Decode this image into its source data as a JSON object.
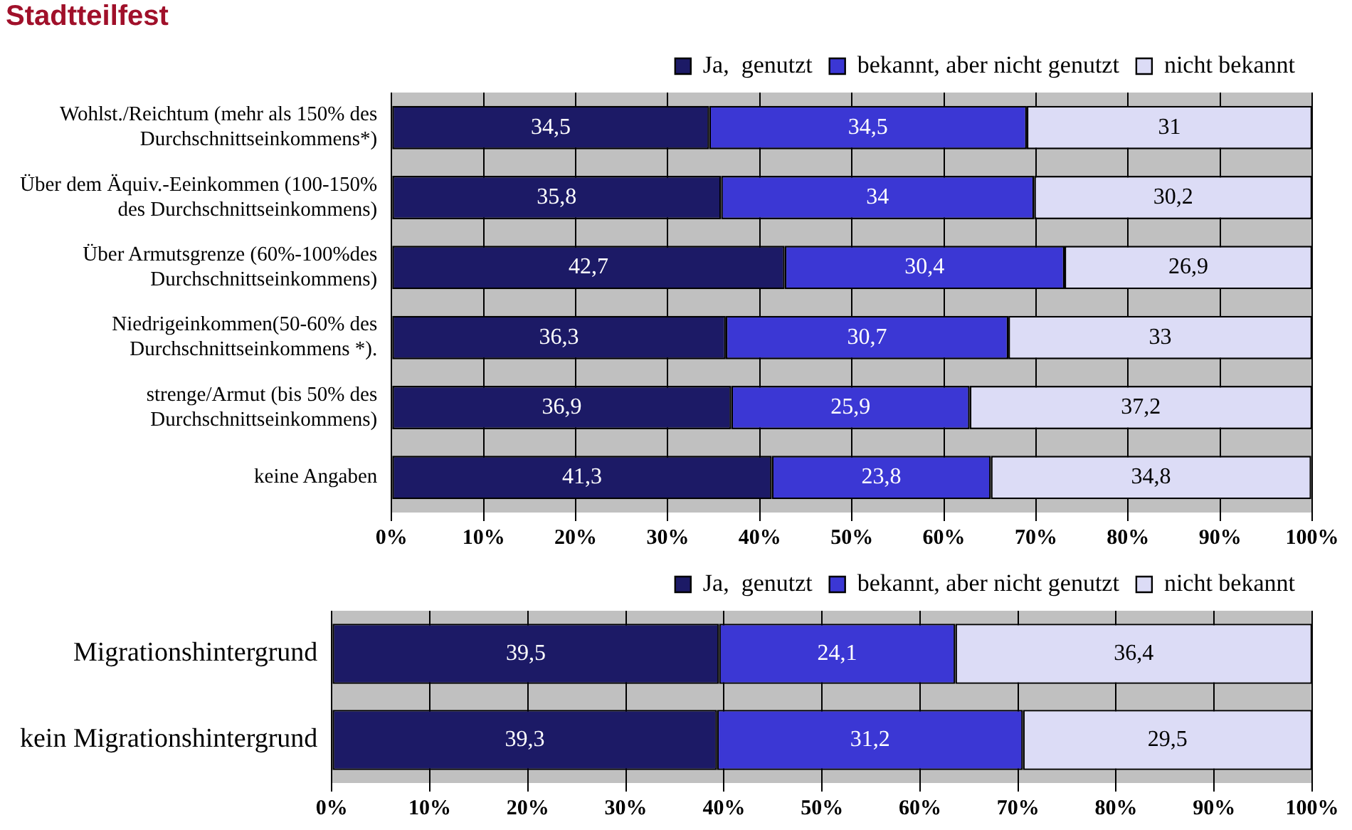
{
  "chart_data": [
    {
      "type": "bar",
      "title": "Stadtteilfest",
      "orientation": "horizontal",
      "stacked": true,
      "grid": "x",
      "legend": "top",
      "categories": [
        "Wohlst./Reichtum (mehr als 150% des Durchschnittseinkommens*)",
        "Über dem Äquiv.-Eeinkommen (100-150% des Durchschnittseinkommens)",
        "Über Armutsgrenze (60%-100%des Durchschnittseinkommens)",
        "Niedrigeinkommen(50-60% des Durchschnittseinkommens *).",
        "strenge/Armut (bis 50% des Durchschnittseinkommens)",
        "keine Angaben"
      ],
      "series": [
        {
          "name": "Ja,  genutzt",
          "color": "#1c1a66",
          "values": [
            34.5,
            35.8,
            42.7,
            36.3,
            36.9,
            41.3
          ],
          "value_labels": [
            "34,5",
            "35,8",
            "42,7",
            "36,3",
            "36,9",
            "41,3"
          ]
        },
        {
          "name": "bekannt, aber nicht genutzt",
          "color": "#3b37d4",
          "values": [
            34.5,
            34,
            30.4,
            30.7,
            25.9,
            23.8
          ],
          "value_labels": [
            "34,5",
            "34",
            "30,4",
            "30,7",
            "25,9",
            "23,8"
          ]
        },
        {
          "name": "nicht bekannt",
          "color": "#dcdcf6",
          "values": [
            31,
            30.2,
            26.9,
            33,
            37.2,
            34.8
          ],
          "value_labels": [
            "31",
            "30,2",
            "26,9",
            "33",
            "37,2",
            "34,8"
          ]
        }
      ],
      "xlim": [
        0,
        100
      ],
      "xticks": [
        {
          "value": 0,
          "label": "0%"
        },
        {
          "value": 10,
          "label": "10%"
        },
        {
          "value": 20,
          "label": "20%"
        },
        {
          "value": 30,
          "label": "30%"
        },
        {
          "value": 40,
          "label": "40%"
        },
        {
          "value": 50,
          "label": "50%"
        },
        {
          "value": 60,
          "label": "60%"
        },
        {
          "value": 70,
          "label": "70%"
        },
        {
          "value": 80,
          "label": "80%"
        },
        {
          "value": 90,
          "label": "90%"
        },
        {
          "value": 100,
          "label": "100%"
        }
      ]
    },
    {
      "type": "bar",
      "orientation": "horizontal",
      "stacked": true,
      "grid": "x",
      "legend": "top",
      "categories": [
        "Migrationshintergrund",
        "kein Migrationshintergrund"
      ],
      "series": [
        {
          "name": "Ja,  genutzt",
          "color": "#1c1a66",
          "values": [
            39.5,
            39.3
          ],
          "value_labels": [
            "39,5",
            "39,3"
          ]
        },
        {
          "name": "bekannt, aber nicht genutzt",
          "color": "#3b37d4",
          "values": [
            24.1,
            31.2
          ],
          "value_labels": [
            "24,1",
            "31,2"
          ]
        },
        {
          "name": "nicht bekannt",
          "color": "#dcdcf6",
          "values": [
            36.4,
            29.5
          ],
          "value_labels": [
            "36,4",
            "29,5"
          ]
        }
      ],
      "xlim": [
        0,
        100
      ],
      "xticks": [
        {
          "value": 0,
          "label": "0%"
        },
        {
          "value": 10,
          "label": "10%"
        },
        {
          "value": 20,
          "label": "20%"
        },
        {
          "value": 30,
          "label": "30%"
        },
        {
          "value": 40,
          "label": "40%"
        },
        {
          "value": 50,
          "label": "50%"
        },
        {
          "value": 60,
          "label": "60%"
        },
        {
          "value": 70,
          "label": "70%"
        },
        {
          "value": 80,
          "label": "80%"
        },
        {
          "value": 90,
          "label": "90%"
        },
        {
          "value": 100,
          "label": "100%"
        }
      ]
    }
  ]
}
